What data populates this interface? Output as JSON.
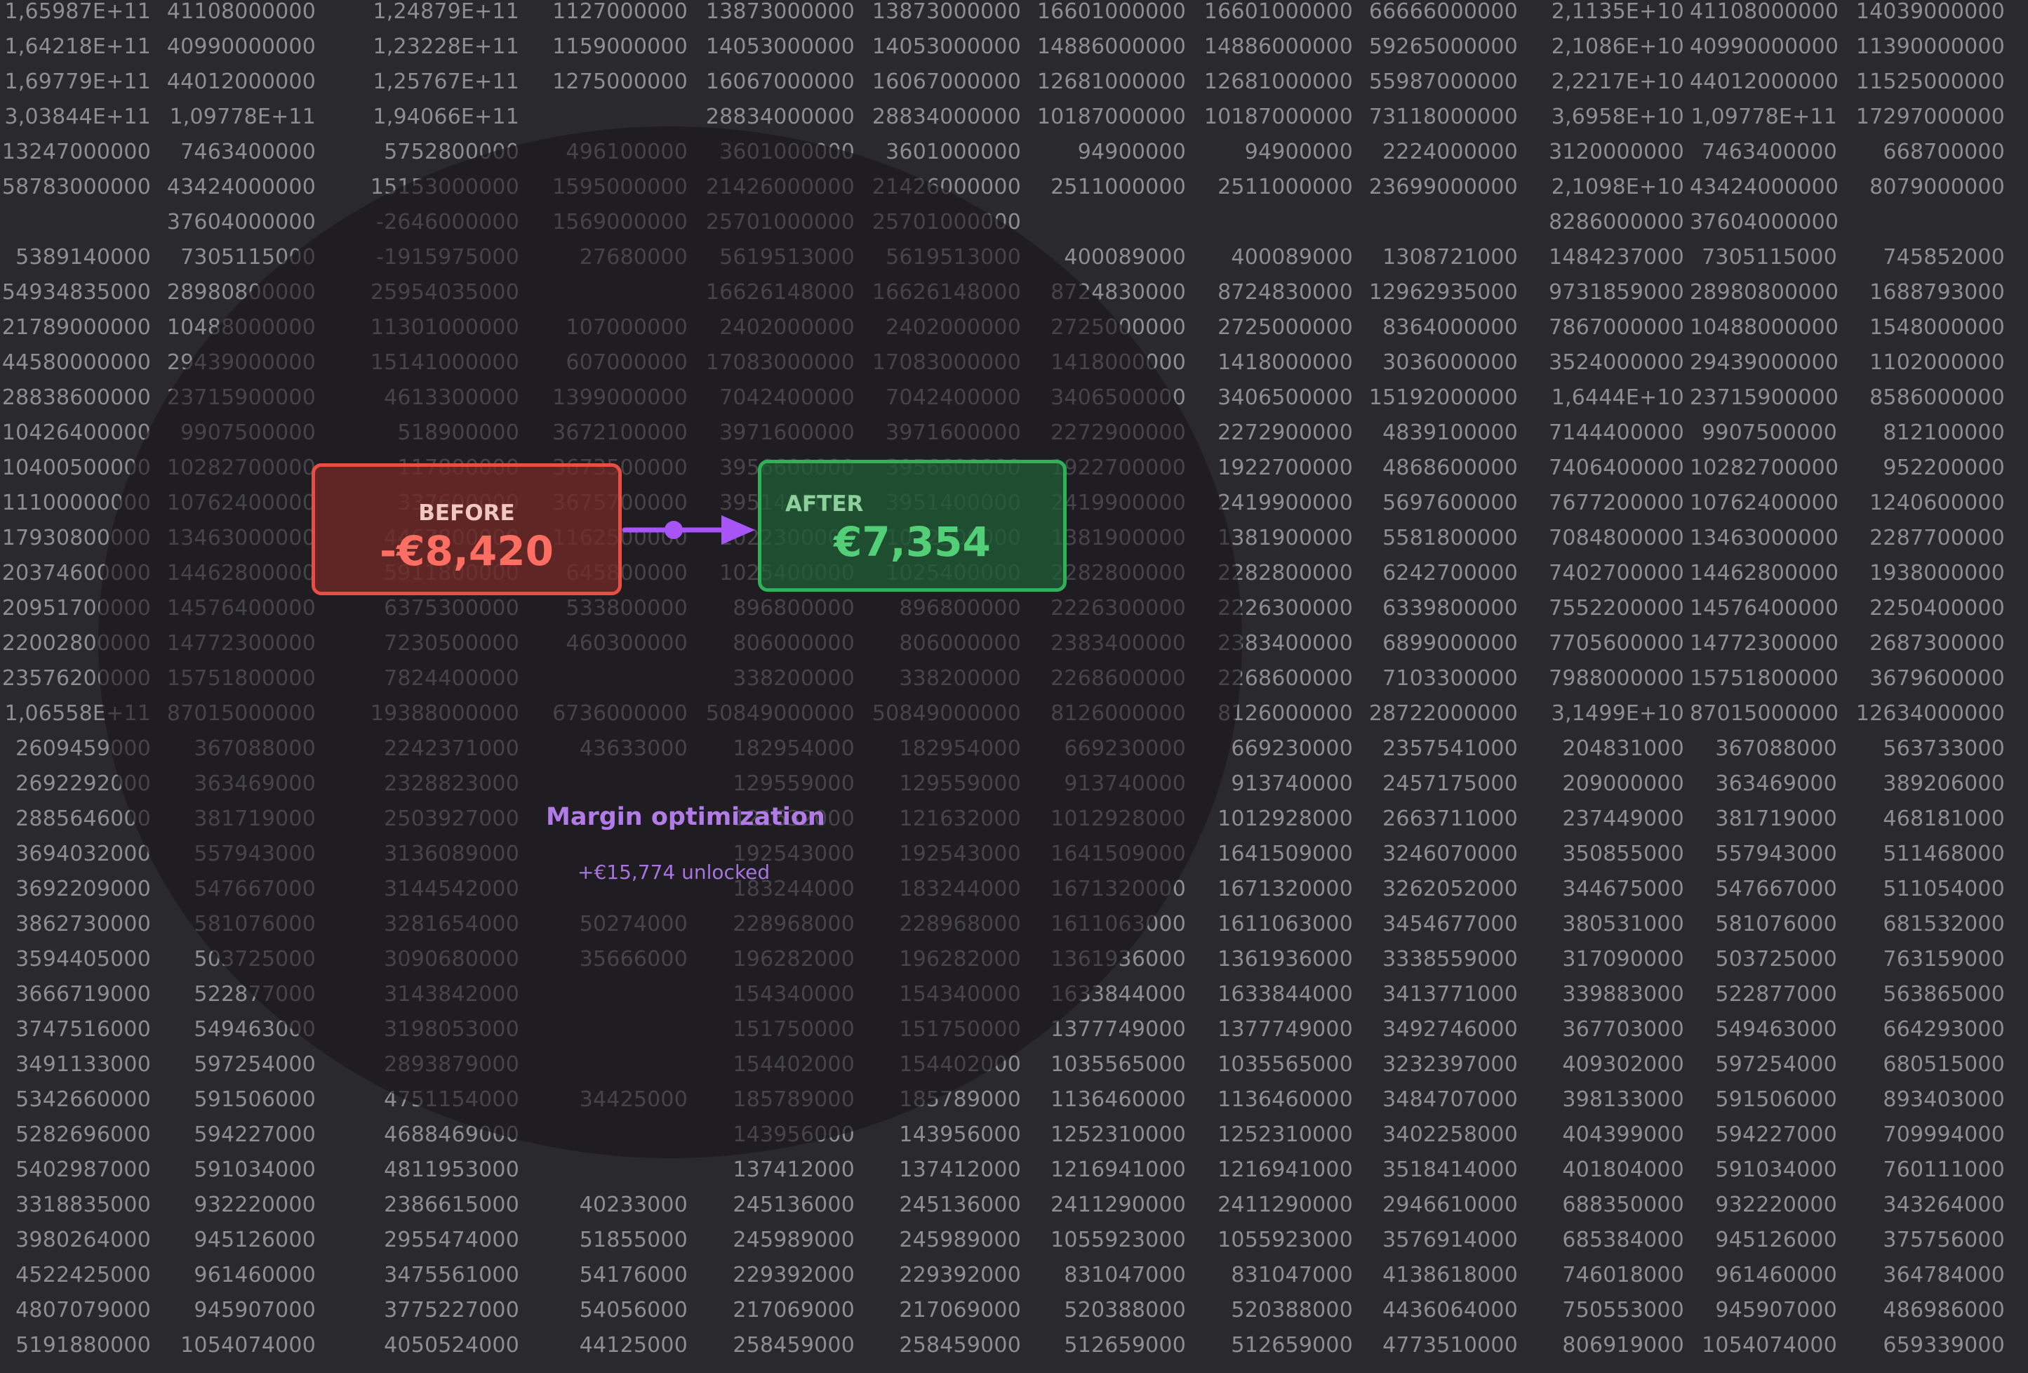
{
  "table": {
    "rows": [
      [
        "1,65987E+11",
        "41108000000",
        "1,24879E+11",
        "1127000000",
        "13873000000",
        "13873000000",
        "16601000000",
        "16601000000",
        "66666000000",
        "2,1135E+10",
        "41108000000",
        "14039000000"
      ],
      [
        "1,64218E+11",
        "40990000000",
        "1,23228E+11",
        "1159000000",
        "14053000000",
        "14053000000",
        "14886000000",
        "14886000000",
        "59265000000",
        "2,1086E+10",
        "40990000000",
        "11390000000"
      ],
      [
        "1,69779E+11",
        "44012000000",
        "1,25767E+11",
        "1275000000",
        "16067000000",
        "16067000000",
        "12681000000",
        "12681000000",
        "55987000000",
        "2,2217E+10",
        "44012000000",
        "11525000000"
      ],
      [
        "3,03844E+11",
        "1,09778E+11",
        "1,94066E+11",
        "",
        "28834000000",
        "28834000000",
        "10187000000",
        "10187000000",
        "73118000000",
        "3,6958E+10",
        "1,09778E+11",
        "17297000000"
      ],
      [
        "13247000000",
        "7463400000",
        "5752800000",
        "496100000",
        "3601000000",
        "3601000000",
        "94900000",
        "94900000",
        "2224000000",
        "3120000000",
        "7463400000",
        "668700000"
      ],
      [
        "58783000000",
        "43424000000",
        "15153000000",
        "1595000000",
        "21426000000",
        "21426000000",
        "2511000000",
        "2511000000",
        "23699000000",
        "2,1098E+10",
        "43424000000",
        "8079000000"
      ],
      [
        "",
        "37604000000",
        "-2646000000",
        "1569000000",
        "25701000000",
        "25701000000",
        "",
        "",
        "",
        "8286000000",
        "37604000000",
        ""
      ],
      [
        "5389140000",
        "7305115000",
        "-1915975000",
        "27680000",
        "5619513000",
        "5619513000",
        "400089000",
        "400089000",
        "1308721000",
        "1484237000",
        "7305115000",
        "745852000"
      ],
      [
        "54934835000",
        "28980800000",
        "25954035000",
        "",
        "16626148000",
        "16626148000",
        "8724830000",
        "8724830000",
        "12962935000",
        "9731859000",
        "28980800000",
        "1688793000"
      ],
      [
        "21789000000",
        "10488000000",
        "11301000000",
        "107000000",
        "2402000000",
        "2402000000",
        "2725000000",
        "2725000000",
        "8364000000",
        "7867000000",
        "10488000000",
        "1548000000"
      ],
      [
        "44580000000",
        "29439000000",
        "15141000000",
        "607000000",
        "17083000000",
        "17083000000",
        "1418000000",
        "1418000000",
        "3036000000",
        "3524000000",
        "29439000000",
        "1102000000"
      ],
      [
        "28838600000",
        "23715900000",
        "4613300000",
        "1399000000",
        "7042400000",
        "7042400000",
        "3406500000",
        "3406500000",
        "15192000000",
        "1,6444E+10",
        "23715900000",
        "8586000000"
      ],
      [
        "10426400000",
        "9907500000",
        "518900000",
        "3672100000",
        "3971600000",
        "3971600000",
        "2272900000",
        "2272900000",
        "4839100000",
        "7144400000",
        "9907500000",
        "812100000"
      ],
      [
        "10400500000",
        "10282700000",
        "117800000",
        "3673500000",
        "3956600000",
        "3956600000",
        "1922700000",
        "1922700000",
        "4868600000",
        "7406400000",
        "10282700000",
        "952200000"
      ],
      [
        "11100000000",
        "10762400000",
        "337600000",
        "3675700000",
        "3951400000",
        "3951400000",
        "2419900000",
        "2419900000",
        "5697600000",
        "7677200000",
        "10762400000",
        "1240600000"
      ],
      [
        "17930800000",
        "13463000000",
        "4467800000",
        "1162500000",
        "1022300000",
        "1022300000",
        "1381900000",
        "1381900000",
        "5581800000",
        "7084800000",
        "13463000000",
        "2287700000"
      ],
      [
        "20374600000",
        "14462800000",
        "5911800000",
        "645800000",
        "1025400000",
        "1025400000",
        "2282800000",
        "2282800000",
        "6242700000",
        "7402700000",
        "14462800000",
        "1938000000"
      ],
      [
        "20951700000",
        "14576400000",
        "6375300000",
        "533800000",
        "896800000",
        "896800000",
        "2226300000",
        "2226300000",
        "6339800000",
        "7552200000",
        "14576400000",
        "2250400000"
      ],
      [
        "22002800000",
        "14772300000",
        "7230500000",
        "460300000",
        "806000000",
        "806000000",
        "2383400000",
        "2383400000",
        "6899000000",
        "7705600000",
        "14772300000",
        "2687300000"
      ],
      [
        "23576200000",
        "15751800000",
        "7824400000",
        "",
        "338200000",
        "338200000",
        "2268600000",
        "2268600000",
        "7103300000",
        "7988000000",
        "15751800000",
        "3679600000"
      ],
      [
        "1,06558E+11",
        "87015000000",
        "19388000000",
        "6736000000",
        "50849000000",
        "50849000000",
        "8126000000",
        "8126000000",
        "28722000000",
        "3,1499E+10",
        "87015000000",
        "12634000000"
      ],
      [
        "2609459000",
        "367088000",
        "2242371000",
        "43633000",
        "182954000",
        "182954000",
        "669230000",
        "669230000",
        "2357541000",
        "204831000",
        "367088000",
        "563733000"
      ],
      [
        "2692292000",
        "363469000",
        "2328823000",
        "",
        "129559000",
        "129559000",
        "913740000",
        "913740000",
        "2457175000",
        "209000000",
        "363469000",
        "389206000"
      ],
      [
        "2885646000",
        "381719000",
        "2503927000",
        "",
        "121632000",
        "121632000",
        "1012928000",
        "1012928000",
        "2663711000",
        "237449000",
        "381719000",
        "468181000"
      ],
      [
        "3694032000",
        "557943000",
        "3136089000",
        "",
        "192543000",
        "192543000",
        "1641509000",
        "1641509000",
        "3246070000",
        "350855000",
        "557943000",
        "511468000"
      ],
      [
        "3692209000",
        "547667000",
        "3144542000",
        "",
        "183244000",
        "183244000",
        "1671320000",
        "1671320000",
        "3262052000",
        "344675000",
        "547667000",
        "511054000"
      ],
      [
        "3862730000",
        "581076000",
        "3281654000",
        "50274000",
        "228968000",
        "228968000",
        "1611063000",
        "1611063000",
        "3454677000",
        "380531000",
        "581076000",
        "681532000"
      ],
      [
        "3594405000",
        "503725000",
        "3090680000",
        "35666000",
        "196282000",
        "196282000",
        "1361936000",
        "1361936000",
        "3338559000",
        "317090000",
        "503725000",
        "763159000"
      ],
      [
        "3666719000",
        "522877000",
        "3143842000",
        "",
        "154340000",
        "154340000",
        "1633844000",
        "1633844000",
        "3413771000",
        "339883000",
        "522877000",
        "563865000"
      ],
      [
        "3747516000",
        "549463000",
        "3198053000",
        "",
        "151750000",
        "151750000",
        "1377749000",
        "1377749000",
        "3492746000",
        "367703000",
        "549463000",
        "664293000"
      ],
      [
        "3491133000",
        "597254000",
        "2893879000",
        "",
        "154402000",
        "154402000",
        "1035565000",
        "1035565000",
        "3232397000",
        "409302000",
        "597254000",
        "680515000"
      ],
      [
        "5342660000",
        "591506000",
        "4751154000",
        "34425000",
        "185789000",
        "185789000",
        "1136460000",
        "1136460000",
        "3484707000",
        "398133000",
        "591506000",
        "893403000"
      ],
      [
        "5282696000",
        "594227000",
        "4688469000",
        "",
        "143956000",
        "143956000",
        "1252310000",
        "1252310000",
        "3402258000",
        "404399000",
        "594227000",
        "709994000"
      ],
      [
        "5402987000",
        "591034000",
        "4811953000",
        "",
        "137412000",
        "137412000",
        "1216941000",
        "1216941000",
        "3518414000",
        "401804000",
        "591034000",
        "760111000"
      ],
      [
        "3318835000",
        "932220000",
        "2386615000",
        "40233000",
        "245136000",
        "245136000",
        "2411290000",
        "2411290000",
        "2946610000",
        "688350000",
        "932220000",
        "343264000"
      ],
      [
        "3980264000",
        "945126000",
        "2955474000",
        "51855000",
        "245989000",
        "245989000",
        "1055923000",
        "1055923000",
        "3576914000",
        "685384000",
        "945126000",
        "375756000"
      ],
      [
        "4522425000",
        "961460000",
        "3475561000",
        "54176000",
        "229392000",
        "229392000",
        "831047000",
        "831047000",
        "4138618000",
        "746018000",
        "961460000",
        "364784000"
      ],
      [
        "4807079000",
        "945907000",
        "3775227000",
        "54056000",
        "217069000",
        "217069000",
        "520388000",
        "520388000",
        "4436064000",
        "750553000",
        "945907000",
        "486986000"
      ],
      [
        "5191880000",
        "1054074000",
        "4050524000",
        "44125000",
        "258459000",
        "258459000",
        "512659000",
        "512659000",
        "4773510000",
        "806919000",
        "1054074000",
        "659339000"
      ]
    ]
  },
  "overlay": {
    "before_label": "BEFORE",
    "before_value": "-€8,420",
    "after_label": "AFTER",
    "after_value": "€7,354",
    "subtitle": "Margin optimization",
    "unlocked_text": "+€15,774 unlocked"
  },
  "colors": {
    "before": "#e94e43",
    "after": "#2fb257",
    "accent": "#a855f7"
  }
}
